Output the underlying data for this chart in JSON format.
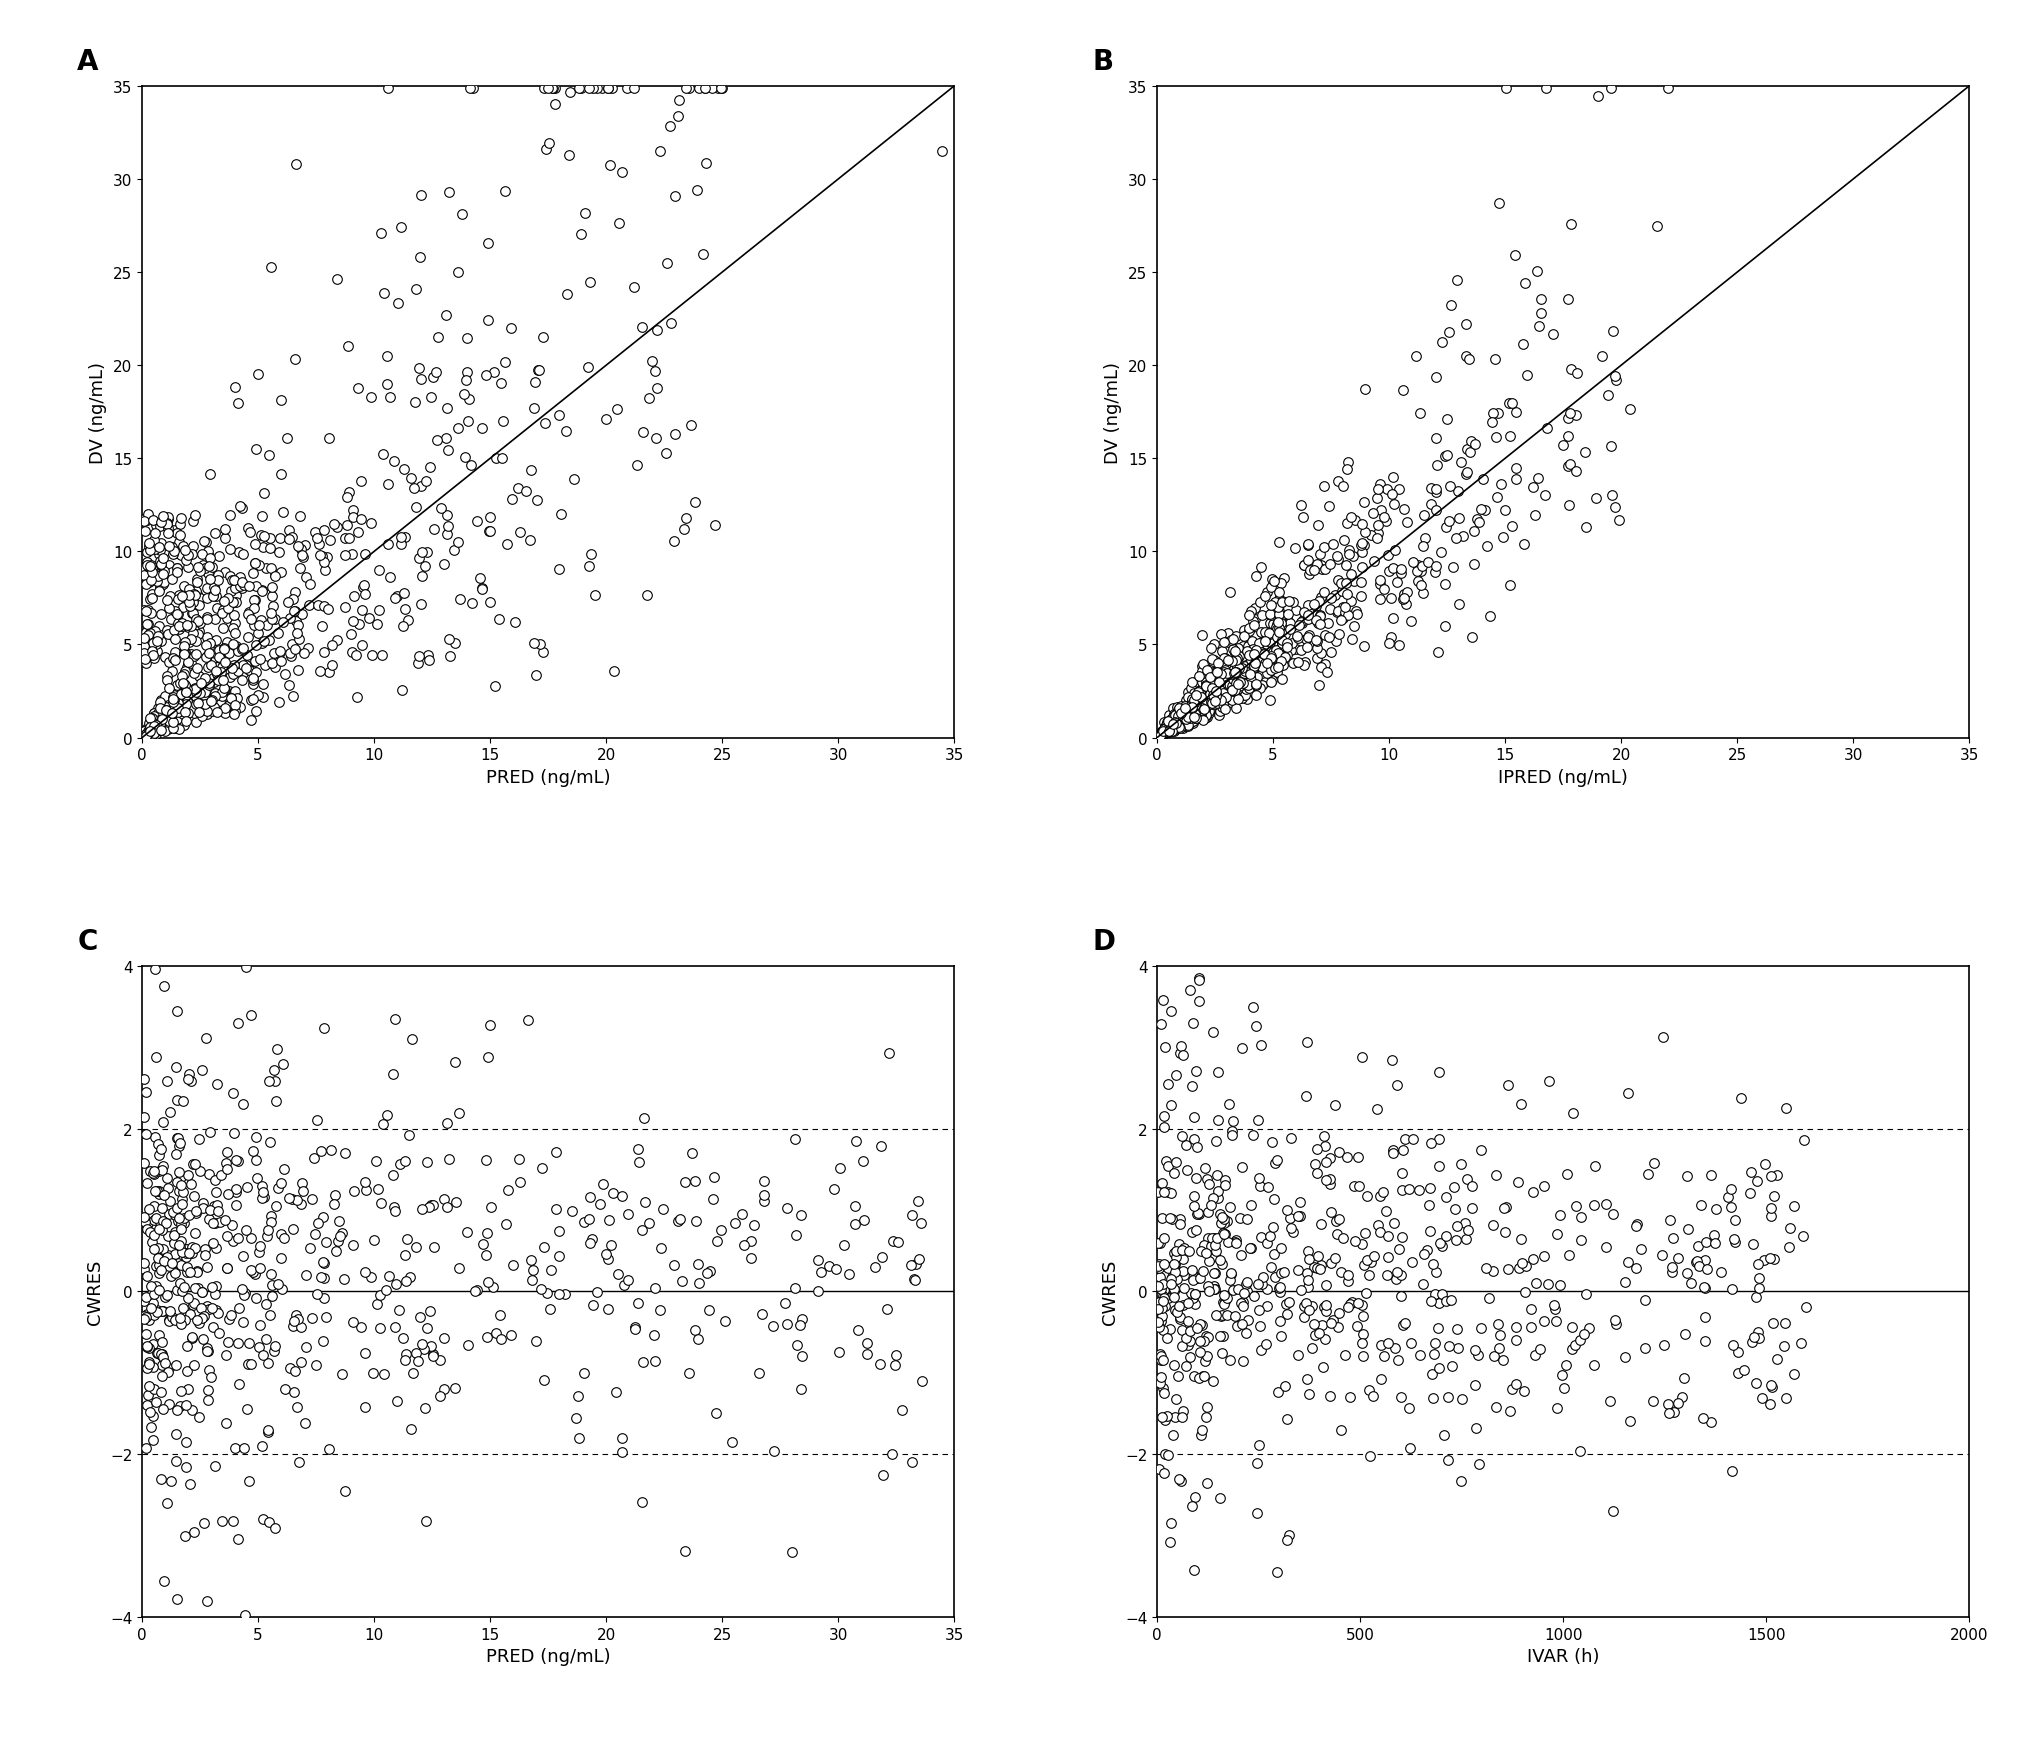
{
  "panel_A": {
    "label": "A",
    "xlabel": "PRED (ng/mL)",
    "ylabel": "DV (ng/mL)",
    "xlim": [
      0,
      35
    ],
    "ylim": [
      0,
      35
    ],
    "xticks": [
      0,
      5,
      10,
      15,
      20,
      25,
      30,
      35
    ],
    "yticks": [
      0,
      5,
      10,
      15,
      20,
      25,
      30,
      35
    ],
    "identity_line": true
  },
  "panel_B": {
    "label": "B",
    "xlabel": "IPRED (ng/mL)",
    "ylabel": "DV (ng/mL)",
    "xlim": [
      0,
      35
    ],
    "ylim": [
      0,
      35
    ],
    "xticks": [
      0,
      5,
      10,
      15,
      20,
      25,
      30,
      35
    ],
    "yticks": [
      0,
      5,
      10,
      15,
      20,
      25,
      30,
      35
    ],
    "identity_line": true
  },
  "panel_C": {
    "label": "C",
    "xlabel": "PRED (ng/mL)",
    "ylabel": "CWRES",
    "xlim": [
      0,
      35
    ],
    "ylim": [
      -4,
      4
    ],
    "xticks": [
      0,
      5,
      10,
      15,
      20,
      25,
      30,
      35
    ],
    "yticks": [
      -4,
      -2,
      0,
      2,
      4
    ],
    "blue_color": "#0000FF",
    "red_color": "#FF0000"
  },
  "panel_D": {
    "label": "D",
    "xlabel": "IVAR (h)",
    "ylabel": "CWRES",
    "xlim": [
      0,
      2000
    ],
    "ylim": [
      -4,
      4
    ],
    "xticks": [
      0,
      500,
      1000,
      1500,
      2000
    ],
    "yticks": [
      -4,
      -2,
      0,
      2,
      4
    ],
    "blue_color": "#0000FF",
    "red_color": "#FF0000"
  },
  "scatter_markersize": 4,
  "scatter_color": "black",
  "scatter_facecolor": "white",
  "scatter_linewidth": 0.8,
  "background_color": "white",
  "panel_label_fontsize": 20,
  "axis_label_fontsize": 13,
  "tick_label_fontsize": 11
}
